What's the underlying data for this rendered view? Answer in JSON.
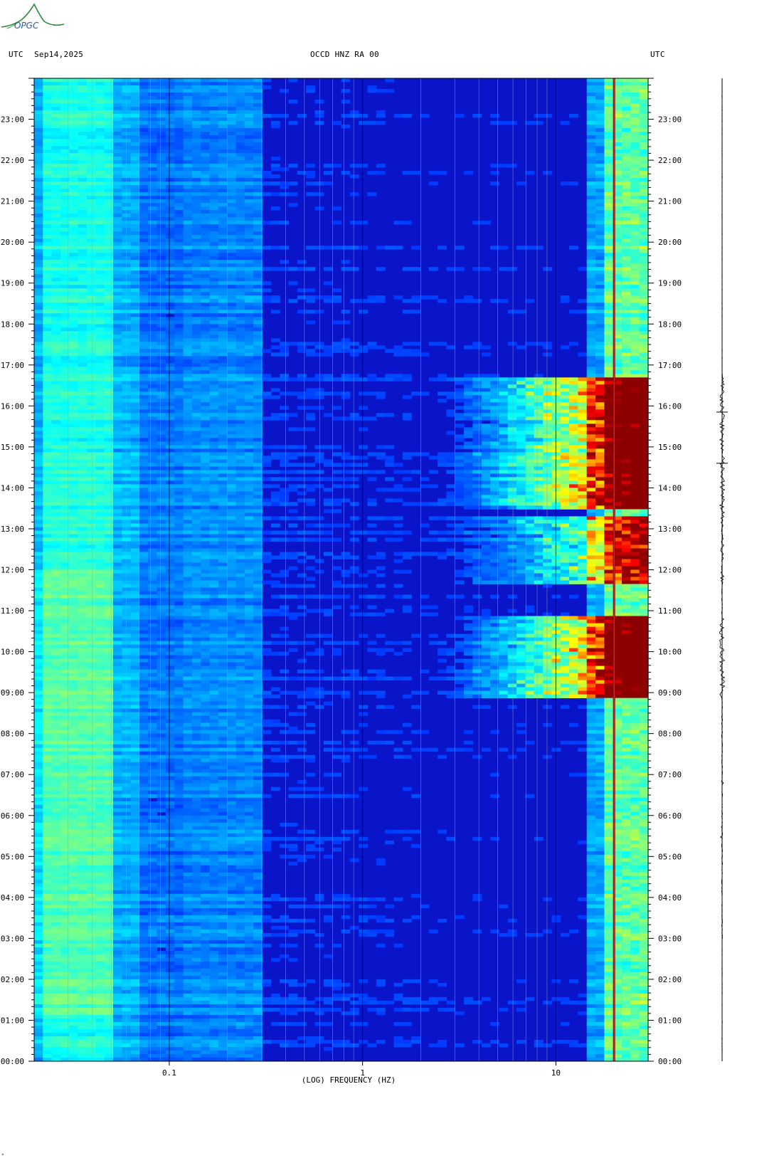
{
  "logo": {
    "text": "OPGC",
    "color": "#2e8b3a"
  },
  "header": {
    "left_tz": "UTC",
    "date": "Sep14,2025",
    "station": "OCCD HNZ RA 00",
    "right_tz": "UTC"
  },
  "footer": {
    "mark": "*"
  },
  "chart_data": {
    "type": "heatmap",
    "title": "OCCD HNZ RA 00",
    "xlabel": "(LOG) FREQUENCY (HZ)",
    "ylabel": "",
    "x_scale": "log",
    "xlim": [
      0.02,
      30
    ],
    "x_ticks": [
      0.1,
      1,
      10
    ],
    "x_tick_labels": [
      "0.1",
      "1",
      "10"
    ],
    "ylim_hours_utc": [
      0,
      24
    ],
    "y_tick_labels": [
      "00:00",
      "01:00",
      "02:00",
      "03:00",
      "04:00",
      "05:00",
      "06:00",
      "07:00",
      "08:00",
      "09:00",
      "10:00",
      "11:00",
      "12:00",
      "13:00",
      "14:00",
      "15:00",
      "16:00",
      "17:00",
      "18:00",
      "19:00",
      "20:00",
      "21:00",
      "22:00",
      "23:00"
    ],
    "grid": true,
    "colormap": [
      "#00008b",
      "#0000ff",
      "#0080ff",
      "#00ffff",
      "#80ff80",
      "#ffff00",
      "#ff8000",
      "#ff0000",
      "#8b0000"
    ],
    "persistent_line_hz": 20,
    "active_band_hz": [
      2,
      30
    ],
    "active_periods_utc": [
      {
        "start": "08:50",
        "end": "10:50",
        "level": "high"
      },
      {
        "start": "11:40",
        "end": "13:20",
        "level": "medium"
      },
      {
        "start": "13:30",
        "end": "16:40",
        "level": "high"
      }
    ],
    "low_freq_band_hz": [
      0.022,
      0.05
    ]
  }
}
